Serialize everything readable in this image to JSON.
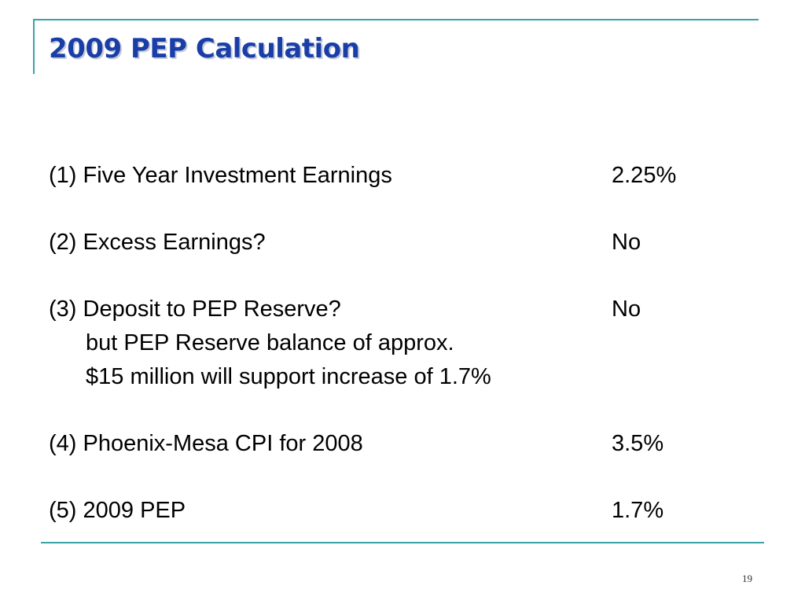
{
  "slide": {
    "title": "2009 PEP Calculation",
    "page_number": "19"
  },
  "items": [
    {
      "label": "(1) Five Year Investment Earnings",
      "value": "2.25%"
    },
    {
      "label": "(2) Excess Earnings?",
      "value": "No"
    },
    {
      "label": "(3) Deposit to PEP Reserve?",
      "value": "No",
      "notes": [
        "but PEP Reserve balance of approx.",
        "$15 million will support increase of 1.7%"
      ]
    },
    {
      "label": "(4) Phoenix-Mesa CPI for 2008",
      "value": "3.5%"
    },
    {
      "label": "(5) 2009 PEP",
      "value": "1.7%"
    }
  ],
  "colors": {
    "title": "#1a3ea8",
    "rule": "#3aa3a8"
  }
}
